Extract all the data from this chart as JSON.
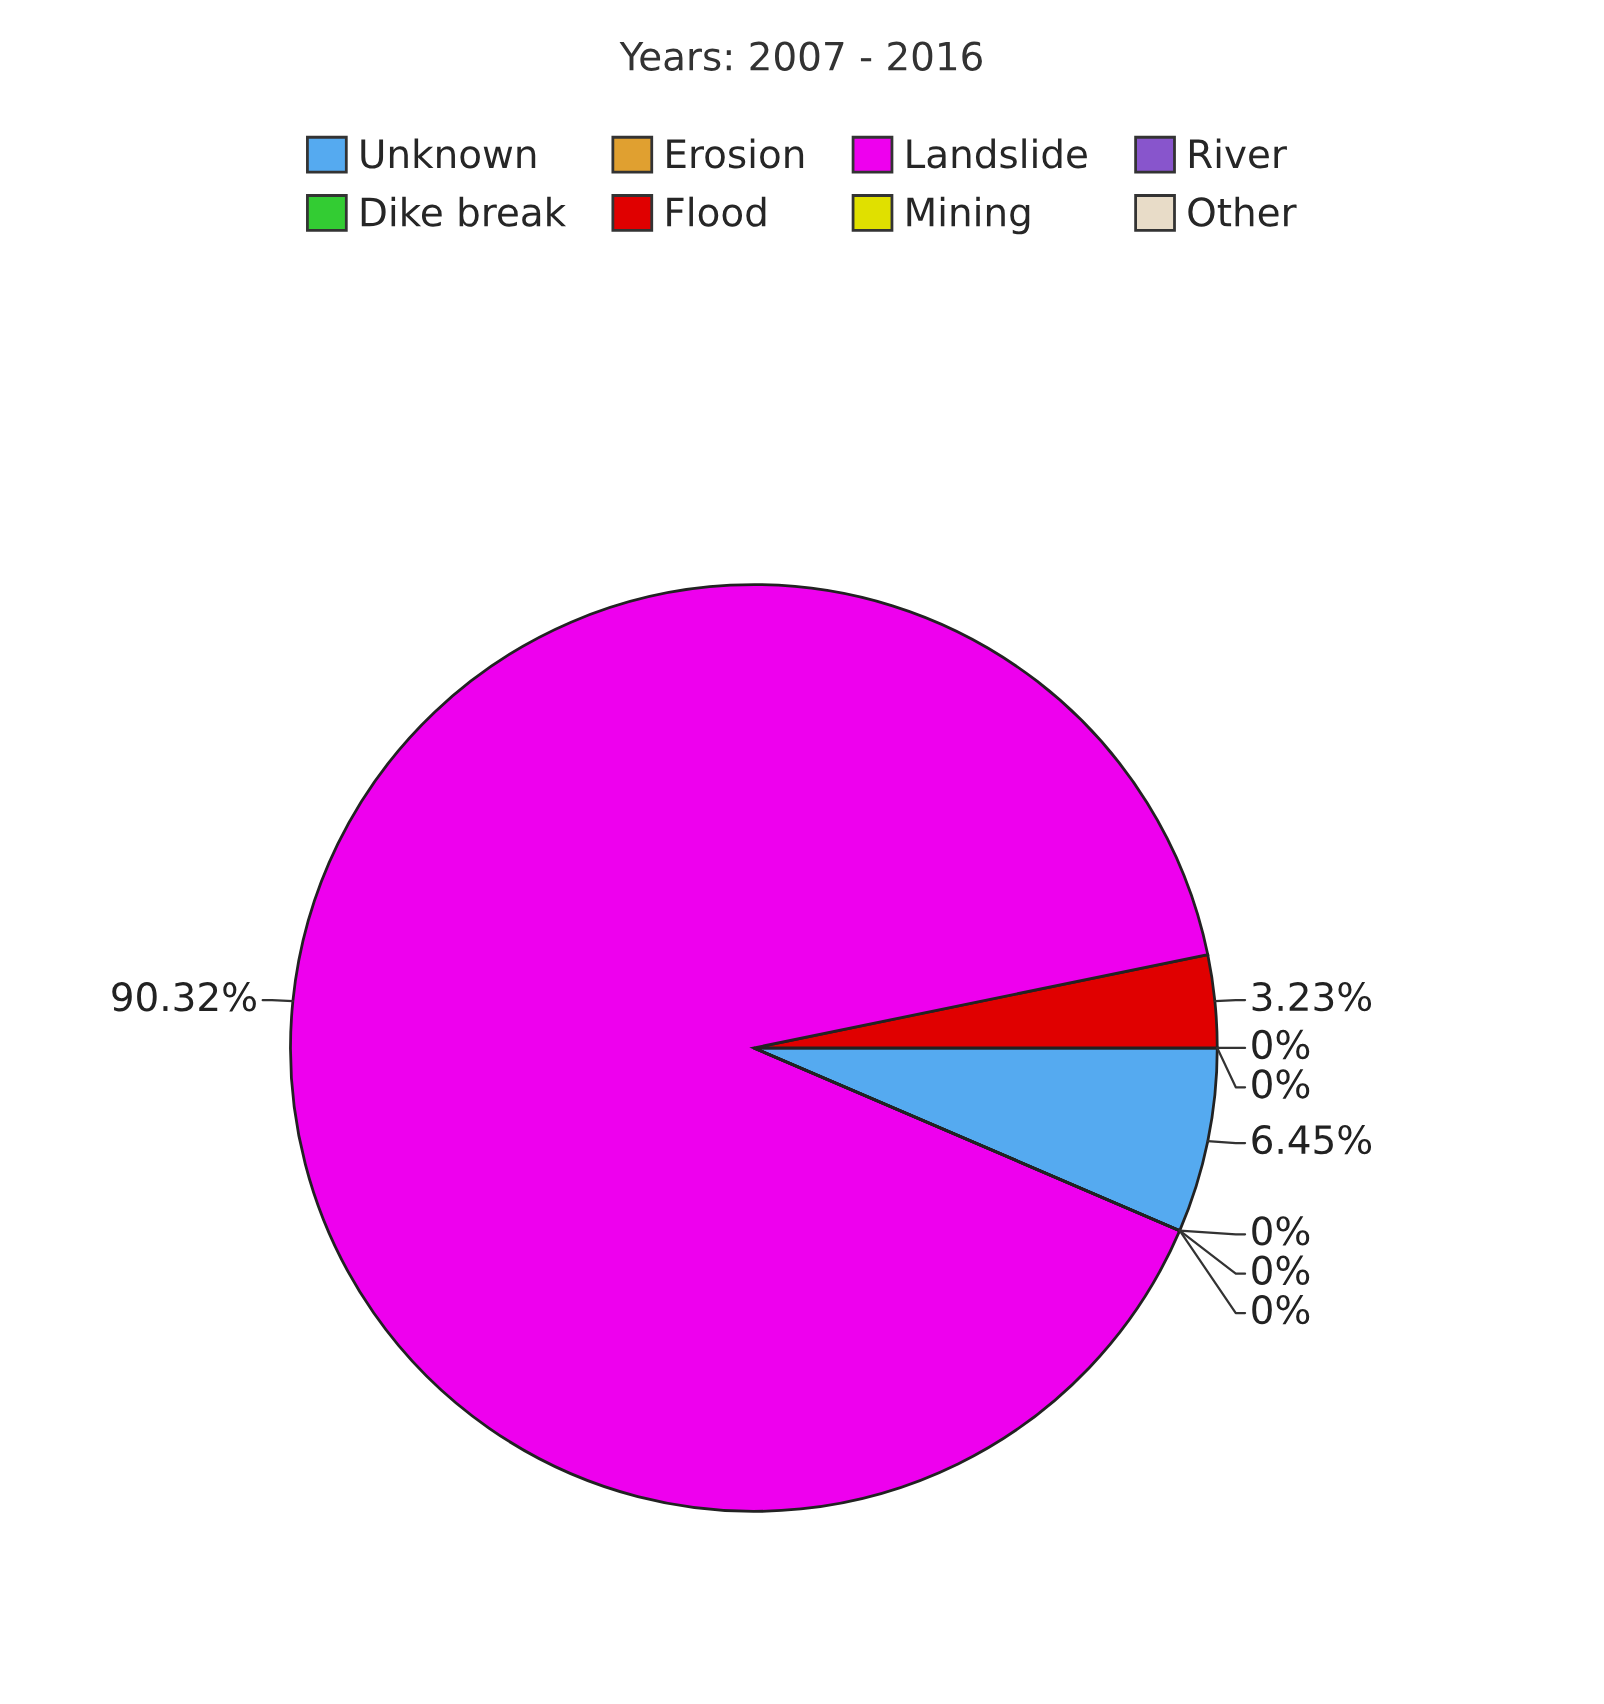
{
  "chart_data": {
    "type": "pie",
    "title": "Years: 2007 - 2016",
    "categories": [
      "Unknown",
      "Dike break",
      "Erosion",
      "Flood",
      "Landslide",
      "Mining",
      "River",
      "Other"
    ],
    "values": [
      6.45,
      0,
      0,
      3.23,
      90.32,
      0,
      0,
      0
    ],
    "value_labels": [
      "6.45%",
      "0%",
      "0%",
      "3.23%",
      "90.32%",
      "0%",
      "0%",
      "0%"
    ],
    "colors": [
      "#55aaf0",
      "#33cc33",
      "#e0a030",
      "#e00000",
      "#ee00ee",
      "#e0e000",
      "#8855cc",
      "#e8dcc8"
    ],
    "legend": "top"
  }
}
